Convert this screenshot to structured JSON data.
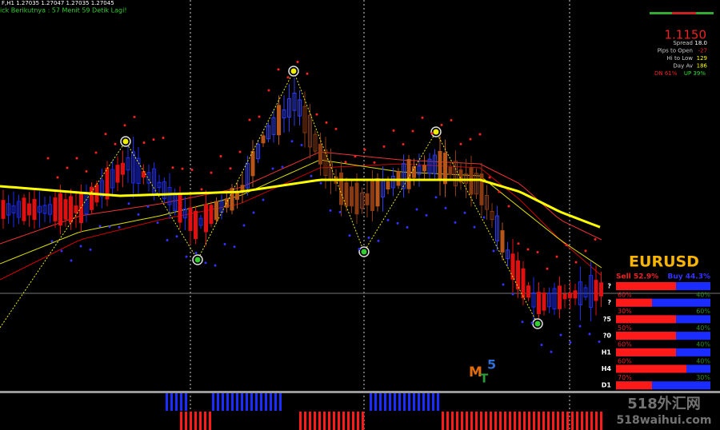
{
  "header": {
    "symbol_line": "F,H1  1.27035 1.27047 1.27035 1.27045",
    "timer": "ick Berikutnya : 57 Menit 59 Detik Lagi!"
  },
  "info_panel": {
    "price": "1.1150",
    "rows": [
      {
        "label": "Spread",
        "value": "18.0"
      },
      {
        "label": "Pips to Open",
        "value": "-27"
      },
      {
        "label": "Hi to Low",
        "value": "129"
      },
      {
        "label": "Day Av",
        "value": "186"
      }
    ],
    "dn": "DN 61%",
    "up": "UP 39%"
  },
  "strength_panel": {
    "symbol": "EURUSD",
    "sell": "Sell 52.9%",
    "buy": "Buy 44.3%",
    "rows": [
      {
        "label": "?",
        "sell": "60%",
        "buy": "40%"
      },
      {
        "label": "?",
        "sell": "30%",
        "buy": "60%"
      },
      {
        "label": "?5",
        "sell": "50%",
        "buy": "40%"
      },
      {
        "label": "?0",
        "sell": "60%",
        "buy": "40%"
      },
      {
        "label": "H1",
        "sell": "60%",
        "buy": "40%"
      },
      {
        "label": "H4",
        "sell": "70%",
        "buy": "30%"
      },
      {
        "label": "D1"
      }
    ]
  },
  "logo": {
    "m": "M",
    "t": "T",
    "five": "5"
  },
  "watermark": {
    "cn": "518外汇网",
    "url": "518waihui.com"
  }
}
